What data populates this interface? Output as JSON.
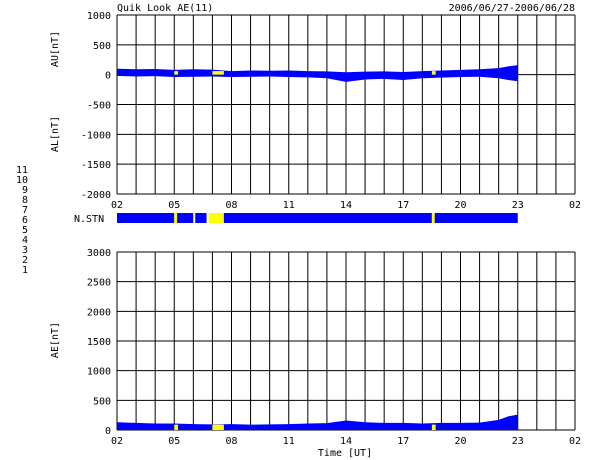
{
  "header": {
    "title": "Quik Look AE(11)",
    "date_range": "2006/06/27-2006/06/28"
  },
  "legend": {
    "station_counts": [
      "11",
      "10",
      "9",
      "8",
      "7",
      "6",
      "5",
      "4",
      "3",
      "2",
      "1"
    ],
    "colors": [
      "#33cccc",
      "#ff33ff",
      "#3333cc",
      "#cccc00",
      "#66cc66",
      "#ff0000",
      "#999999",
      "#cccccc",
      "#33aaaa",
      "#aa3399",
      "#3333aa"
    ]
  },
  "colors": {
    "data": "#0000ff",
    "highlight": "#ffff00",
    "grid": "#000000"
  },
  "chart_data": [
    {
      "type": "area",
      "name": "AU/AL panel",
      "ylabels": [
        "AU[nT]",
        "AL[nT]"
      ],
      "ylim": [
        -2000,
        1000
      ],
      "yticks": [
        1000,
        500,
        0,
        -500,
        -1000,
        -1500,
        -2000
      ],
      "xlim": [
        2,
        26
      ],
      "xticks": [
        "02",
        "05",
        "08",
        "11",
        "14",
        "17",
        "20",
        "23",
        "02"
      ],
      "grid": true,
      "data_end_hour": 23,
      "x": [
        2,
        3,
        4,
        5,
        6,
        7,
        8,
        9,
        10,
        11,
        12,
        13,
        14,
        15,
        16,
        17,
        18,
        19,
        20,
        21,
        22,
        22.5,
        23
      ],
      "au": [
        100,
        90,
        95,
        80,
        90,
        85,
        60,
        70,
        65,
        70,
        60,
        55,
        40,
        50,
        55,
        45,
        60,
        70,
        80,
        90,
        110,
        140,
        160
      ],
      "al": [
        -20,
        -30,
        -25,
        -40,
        -35,
        -30,
        -40,
        -35,
        -30,
        -40,
        -45,
        -60,
        -120,
        -80,
        -70,
        -90,
        -60,
        -50,
        -40,
        -35,
        -60,
        -90,
        -110
      ],
      "highlight_intervals": [
        [
          5,
          5.2
        ],
        [
          7,
          7.6
        ],
        [
          18.5,
          18.7
        ]
      ]
    },
    {
      "type": "bar",
      "name": "N.STN strip",
      "label": "N.STN",
      "xlim": [
        2,
        26
      ],
      "xticks": [
        "02",
        "05",
        "08",
        "11",
        "14",
        "17",
        "20",
        "23",
        "02"
      ],
      "segments": [
        {
          "start": 2,
          "end": 5,
          "color": "#0000ff"
        },
        {
          "start": 5,
          "end": 5.15,
          "color": "#ffff00"
        },
        {
          "start": 5.15,
          "end": 6.0,
          "color": "#0000ff"
        },
        {
          "start": 6.0,
          "end": 6.1,
          "color": "#ffffff"
        },
        {
          "start": 6.1,
          "end": 6.7,
          "color": "#0000ff"
        },
        {
          "start": 6.7,
          "end": 6.8,
          "color": "#ffffff"
        },
        {
          "start": 6.8,
          "end": 7.6,
          "color": "#ffff00"
        },
        {
          "start": 7.6,
          "end": 18.5,
          "color": "#0000ff"
        },
        {
          "start": 18.5,
          "end": 18.65,
          "color": "#ffff00"
        },
        {
          "start": 18.65,
          "end": 23,
          "color": "#0000ff"
        }
      ]
    },
    {
      "type": "area",
      "name": "AE panel",
      "ylabel": "AE[nT]",
      "xlabel": "Time [UT]",
      "ylim": [
        0,
        3000
      ],
      "yticks": [
        3000,
        2500,
        2000,
        1500,
        1000,
        500,
        0
      ],
      "xlim": [
        2,
        26
      ],
      "xticks": [
        "02",
        "05",
        "08",
        "11",
        "14",
        "17",
        "20",
        "23",
        "02"
      ],
      "grid": true,
      "data_end_hour": 23,
      "x": [
        2,
        3,
        4,
        5,
        6,
        7,
        8,
        9,
        10,
        11,
        12,
        13,
        14,
        15,
        16,
        17,
        18,
        19,
        20,
        21,
        22,
        22.5,
        23
      ],
      "ae": [
        130,
        120,
        110,
        110,
        100,
        95,
        100,
        90,
        95,
        100,
        110,
        115,
        160,
        130,
        120,
        120,
        110,
        120,
        120,
        125,
        170,
        230,
        260
      ],
      "highlight_intervals": [
        [
          5,
          5.2
        ],
        [
          7,
          7.6
        ],
        [
          18.5,
          18.7
        ]
      ]
    }
  ]
}
